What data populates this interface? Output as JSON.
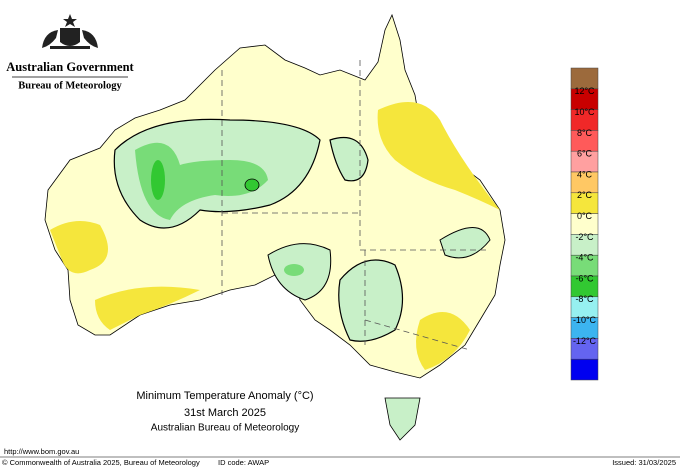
{
  "header": {
    "government": "Australian Government",
    "agency": "Bureau of Meteorology"
  },
  "title": {
    "line1": "Minimum Temperature Anomaly (°C)",
    "line2": "31st March 2025",
    "line3": "Australian Bureau of Meteorology"
  },
  "legend": {
    "colors": [
      "#9c6a3c",
      "#c80000",
      "#f02828",
      "#ff5a5a",
      "#ffa0a0",
      "#ffc864",
      "#f5e63c",
      "#ffffcc",
      "#c8f0c8",
      "#78dc78",
      "#32c832",
      "#96f0f0",
      "#3cb4f0",
      "#6464f0",
      "#0000f0"
    ],
    "labels": [
      "12°C",
      "10°C",
      "8°C",
      "6°C",
      "4°C",
      "2°C",
      "0°C",
      "-2°C",
      "-4°C",
      "-6°C",
      "-8°C",
      "-10°C",
      "-12°C"
    ]
  },
  "footer": {
    "url": "http://www.bom.gov.au",
    "copyright": "© Commonwealth of Australia 2025, Bureau of Meteorology",
    "id_code": "ID code: AWAP",
    "issued": "Issued: 31/03/2025"
  }
}
